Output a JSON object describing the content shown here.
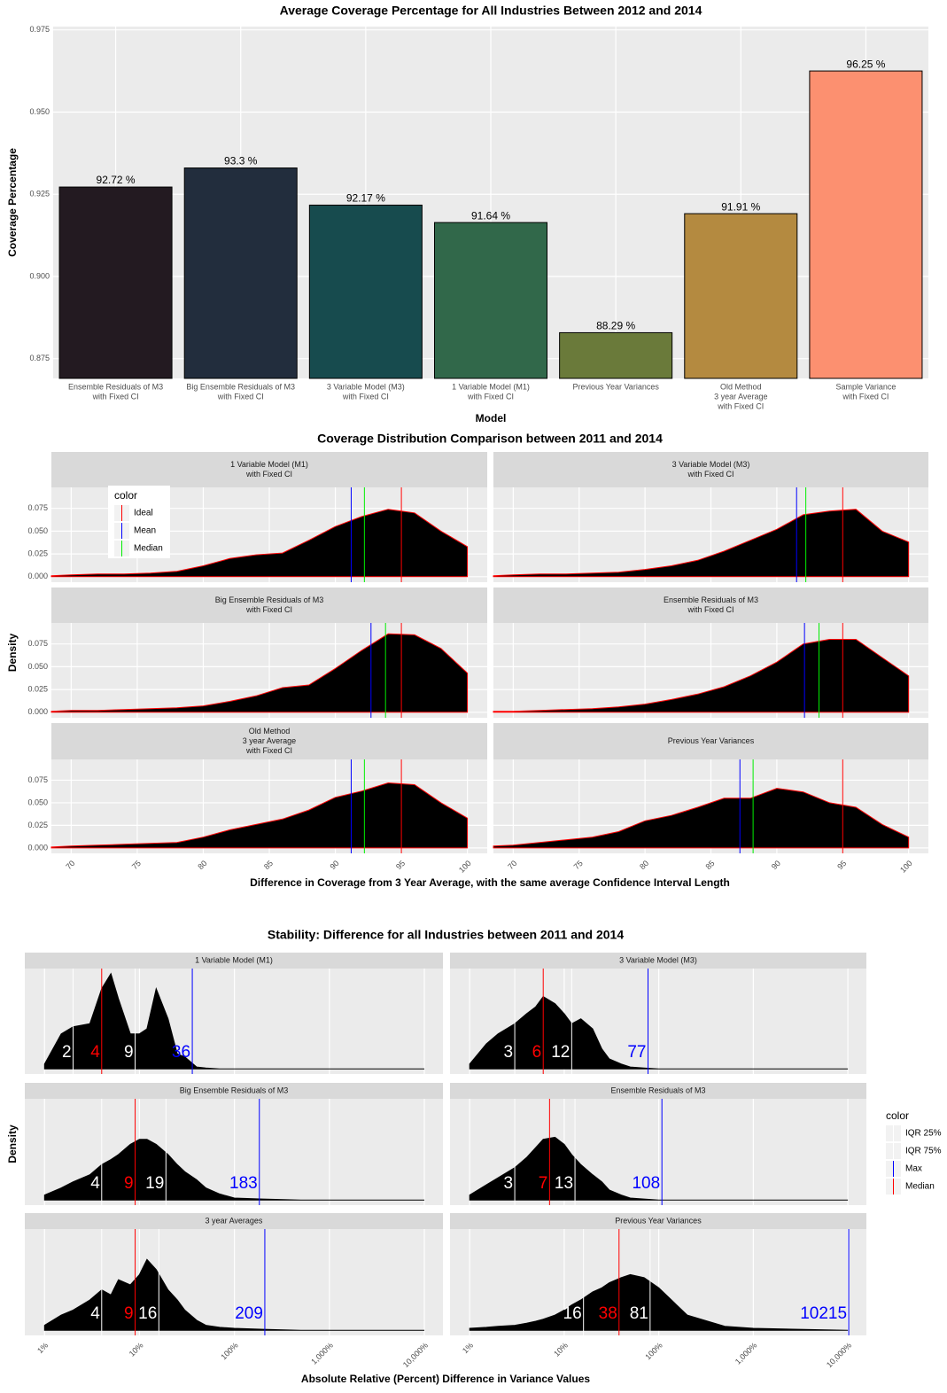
{
  "chart_data": [
    {
      "type": "bar",
      "title": "Average Coverage Percentage for All Industries Between 2012 and 2014",
      "x_label": "Model",
      "y_label": "Coverage Percentage",
      "categories": [
        [
          "Ensemble Residuals of M3",
          "with Fixed CI"
        ],
        [
          "Big Ensemble Residuals of M3",
          "with Fixed CI"
        ],
        [
          "3 Variable Model (M3)",
          "with Fixed CI"
        ],
        [
          "1 Variable Model (M1)",
          "with Fixed CI"
        ],
        [
          "Previous Year Variances"
        ],
        [
          "Old Method",
          "3 year Average",
          "with Fixed CI"
        ],
        [
          "Sample Variance",
          "with Fixed CI"
        ]
      ],
      "values": [
        0.9272,
        0.933,
        0.9217,
        0.9164,
        0.8829,
        0.9191,
        0.9625
      ],
      "value_labels": [
        "92.72 %",
        "93.3 %",
        "92.17 %",
        "91.64 %",
        "88.29 %",
        "91.91 %",
        "96.25 %"
      ],
      "colors": [
        "#231a21",
        "#222d3d",
        "#174b4e",
        "#31684a",
        "#6a7a3a",
        "#b48a40",
        "#fc9070"
      ],
      "ylim": [
        0.869,
        0.976
      ],
      "yticks": [
        0.875,
        {
          "value": 0.9,
          "label": "0.900"
        },
        0.925,
        {
          "value": 0.95,
          "label": "0.950"
        },
        0.975
      ],
      "grid": true
    },
    {
      "type": "density",
      "title": "Coverage Distribution Comparison between 2011 and 2014",
      "x_label": "Difference in Coverage from 3 Year Average, with the same average Confidence Interval Length",
      "y_label": "Density",
      "x": [
        68.5,
        70,
        72,
        74,
        76,
        78,
        80,
        82,
        84,
        86,
        88,
        90,
        92,
        94,
        96,
        98,
        100
      ],
      "xlim": [
        68.5,
        101.5
      ],
      "xticks": [
        70,
        75,
        80,
        85,
        90,
        95,
        100
      ],
      "ylim": [
        -0.006,
        0.098
      ],
      "yticks": [
        {
          "value": 0,
          "label": "0.000"
        },
        0.025,
        {
          "value": 0.05,
          "label": "0.050"
        },
        0.075
      ],
      "fill": "#000000",
      "outline": "#ff0000",
      "legend_title": "color",
      "legend_position": "top-left",
      "lines": [
        {
          "name": "Ideal",
          "color": "#ff0000"
        },
        {
          "name": "Mean",
          "color": "#0000ff"
        },
        {
          "name": "Median",
          "color": "#00ee00"
        }
      ],
      "panels": [
        {
          "title": [
            "1 Variable Model (M1)",
            "with Fixed CI"
          ],
          "values": [
            0.001,
            0.002,
            0.003,
            0.003,
            0.004,
            0.006,
            0.012,
            0.02,
            0.024,
            0.026,
            0.04,
            0.055,
            0.066,
            0.074,
            0.07,
            0.05,
            0.033
          ],
          "line_values": [
            95,
            91.2,
            92.2
          ]
        },
        {
          "title": [
            "3 Variable Model (M3)",
            "with Fixed CI"
          ],
          "values": [
            0.001,
            0.002,
            0.003,
            0.003,
            0.004,
            0.005,
            0.008,
            0.012,
            0.018,
            0.028,
            0.04,
            0.052,
            0.068,
            0.072,
            0.074,
            0.05,
            0.038
          ],
          "line_values": [
            95,
            91.5,
            92.2
          ]
        },
        {
          "title": [
            "Big Ensemble Residuals of M3",
            "with Fixed CI"
          ],
          "values": [
            0.001,
            0.002,
            0.002,
            0.003,
            0.004,
            0.005,
            0.007,
            0.012,
            0.018,
            0.027,
            0.03,
            0.048,
            0.068,
            0.086,
            0.085,
            0.07,
            0.043
          ],
          "line_values": [
            95,
            92.7,
            93.8
          ]
        },
        {
          "title": [
            "Ensemble Residuals of M3",
            "with Fixed CI"
          ],
          "values": [
            0.001,
            0.001,
            0.002,
            0.003,
            0.004,
            0.006,
            0.009,
            0.014,
            0.02,
            0.028,
            0.04,
            0.055,
            0.075,
            0.08,
            0.08,
            0.06,
            0.04
          ],
          "line_values": [
            95,
            92.1,
            93.2
          ]
        },
        {
          "title": [
            "Old Method",
            "3 year Average",
            "with Fixed CI"
          ],
          "values": [
            0.001,
            0.002,
            0.003,
            0.004,
            0.005,
            0.006,
            0.012,
            0.02,
            0.026,
            0.032,
            0.042,
            0.056,
            0.063,
            0.072,
            0.07,
            0.05,
            0.033
          ],
          "line_values": [
            95,
            91.2,
            92.2
          ]
        },
        {
          "title": [
            "Previous Year Variances"
          ],
          "values": [
            0.002,
            0.003,
            0.006,
            0.009,
            0.012,
            0.018,
            0.03,
            0.036,
            0.045,
            0.055,
            0.055,
            0.066,
            0.062,
            0.05,
            0.045,
            0.026,
            0.012
          ],
          "line_values": [
            95,
            87.2,
            88.2
          ]
        }
      ]
    },
    {
      "type": "density",
      "title": "Stability: Difference for all Industries between 2011 and 2014",
      "x_label": "Absolute Relative (Percent) Difference in Variance Values",
      "y_label": "Density",
      "log_x": true,
      "x": [
        1,
        1.5,
        2,
        3,
        4,
        5,
        6,
        8,
        10,
        12,
        15,
        20,
        25,
        30,
        40,
        50,
        70,
        100,
        200,
        500,
        1000,
        10000
      ],
      "xlim": [
        0.62,
        15700
      ],
      "xticks": [
        {
          "value": 1,
          "label": "1%"
        },
        {
          "value": 10,
          "label": "10%"
        },
        {
          "value": 100,
          "label": "100%"
        },
        {
          "value": 1000,
          "label": "1,000%"
        },
        {
          "value": 10000,
          "label": "10,000%"
        }
      ],
      "ylim": [
        -0.05,
        1
      ],
      "fill": "#000000",
      "outline": "#000000",
      "legend_title": "color",
      "legend_position": "right",
      "line_labels": true,
      "lines": [
        {
          "name": "IQR 25%",
          "color": "#ffffff"
        },
        {
          "name": "IQR 75%",
          "color": "#ffffff"
        },
        {
          "name": "Max",
          "color": "#0000ff"
        },
        {
          "name": "Median",
          "color": "#ff0000"
        }
      ],
      "panels": [
        {
          "title": [
            "1 Variable Model (M1)"
          ],
          "values": [
            0.05,
            0.35,
            0.42,
            0.45,
            0.8,
            0.95,
            0.7,
            0.35,
            0.35,
            0.4,
            0.8,
            0.5,
            0.15,
            0.12,
            0.02,
            0.01,
            0,
            0,
            0,
            0,
            0,
            0
          ],
          "line_values": [
            2,
            9,
            36,
            4
          ]
        },
        {
          "title": [
            "3 Variable Model (M3)"
          ],
          "values": [
            0.05,
            0.25,
            0.35,
            0.45,
            0.55,
            0.62,
            0.72,
            0.65,
            0.55,
            0.45,
            0.5,
            0.4,
            0.2,
            0.1,
            0.05,
            0.02,
            0.01,
            0,
            0,
            0,
            0,
            0
          ],
          "line_values": [
            3,
            12,
            77,
            6
          ]
        },
        {
          "title": [
            "Big Ensemble Residuals of M3"
          ],
          "values": [
            0.05,
            0.12,
            0.18,
            0.25,
            0.35,
            0.4,
            0.45,
            0.55,
            0.6,
            0.6,
            0.55,
            0.45,
            0.35,
            0.28,
            0.2,
            0.12,
            0.06,
            0.02,
            0.01,
            0,
            0,
            0
          ],
          "line_values": [
            4,
            19,
            183,
            9
          ]
        },
        {
          "title": [
            "Ensemble Residuals of M3"
          ],
          "values": [
            0.05,
            0.15,
            0.22,
            0.32,
            0.42,
            0.52,
            0.6,
            0.62,
            0.55,
            0.45,
            0.35,
            0.25,
            0.18,
            0.1,
            0.05,
            0.02,
            0.01,
            0,
            0,
            0,
            0,
            0
          ],
          "line_values": [
            3,
            13,
            108,
            7
          ]
        },
        {
          "title": [
            "3 year Averages"
          ],
          "values": [
            0.05,
            0.15,
            0.2,
            0.3,
            0.4,
            0.35,
            0.5,
            0.45,
            0.55,
            0.7,
            0.6,
            0.4,
            0.3,
            0.2,
            0.1,
            0.05,
            0.03,
            0.02,
            0.01,
            0,
            0,
            0
          ],
          "line_values": [
            4,
            16,
            209,
            9
          ]
        },
        {
          "title": [
            "Previous Year Variances"
          ],
          "values": [
            0.02,
            0.03,
            0.04,
            0.05,
            0.07,
            0.09,
            0.11,
            0.15,
            0.2,
            0.25,
            0.3,
            0.38,
            0.42,
            0.47,
            0.52,
            0.55,
            0.52,
            0.42,
            0.15,
            0.04,
            0.02,
            0
          ],
          "line_values": [
            16,
            81,
            10215,
            38
          ]
        }
      ]
    }
  ]
}
